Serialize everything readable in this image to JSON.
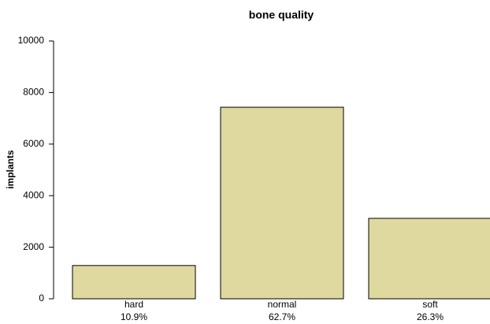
{
  "chart_data": {
    "type": "bar",
    "title": "bone quality",
    "y_label": "implants",
    "categories": [
      "hard",
      "normal",
      "soft"
    ],
    "category_sublabels": [
      "10.9%",
      "62.7%",
      "26.3%"
    ],
    "values": [
      1290,
      7430,
      3120
    ],
    "color": "#dfd9a0",
    "ylim": [
      0,
      10000
    ],
    "yticks": [
      0,
      2000,
      4000,
      6000,
      8000,
      10000
    ]
  }
}
